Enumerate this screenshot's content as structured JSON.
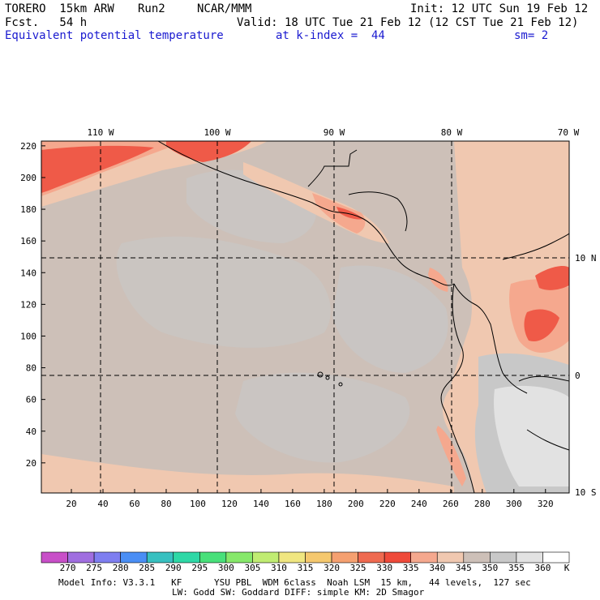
{
  "header": {
    "model": "TORERO  15km ARW",
    "run": "Run2",
    "org": "NCAR/MMM",
    "init": "Init: 12 UTC Sun 19 Feb 12",
    "fcst": "Fcst.   54 h",
    "valid": "Valid: 18 UTC Tue 21 Feb 12 (12 CST Tue 21 Feb 12)",
    "field": "Equivalent potential temperature",
    "level": "at k-index =  44",
    "smooth": "sm= 2"
  },
  "map": {
    "top_lon_labels": [
      "110 W",
      "100 W",
      "90 W",
      "80 W",
      "70 W"
    ],
    "right_lat_labels": [
      "10 N",
      "0",
      "10 S"
    ],
    "x_ticks": [
      "20",
      "40",
      "60",
      "80",
      "100",
      "120",
      "140",
      "160",
      "180",
      "200",
      "220",
      "240",
      "260",
      "280",
      "300",
      "320"
    ],
    "y_ticks": [
      "20",
      "40",
      "60",
      "80",
      "100",
      "120",
      "140",
      "160",
      "180",
      "200",
      "220"
    ],
    "colors": {
      "base": "#cdc0b8",
      "light_gray": "#c8c8c8",
      "pale_gray": "#e2e2e2",
      "salmon_light": "#f0c8b0",
      "salmon": "#f5a88e",
      "red": "#ef5a48",
      "coast": "#000000"
    }
  },
  "colorbar": {
    "labels": [
      "270",
      "275",
      "280",
      "285",
      "290",
      "295",
      "300",
      "305",
      "310",
      "315",
      "320",
      "325",
      "330",
      "335",
      "340",
      "345",
      "350",
      "355",
      "360"
    ],
    "unit": "K",
    "colors": [
      "#c84fc8",
      "#a06ee0",
      "#7e7ef0",
      "#4a8ef5",
      "#38c0c0",
      "#2ed8a6",
      "#48e07a",
      "#86e86a",
      "#c0ec72",
      "#f0e680",
      "#f5c86e",
      "#f5a070",
      "#ef6a50",
      "#ef4a3a",
      "#f5a88e",
      "#f0c8b0",
      "#cdc0b8",
      "#c8c8c8",
      "#e2e2e2",
      "#ffffff"
    ]
  },
  "footer": {
    "line1": "Model Info: V3.3.1   KF      YSU PBL  WDM 6class  Noah LSM  15 km,   44 levels,  127 sec",
    "line2": "LW: Godd SW: Goddard DIFF: simple KM: 2D Smagor"
  }
}
